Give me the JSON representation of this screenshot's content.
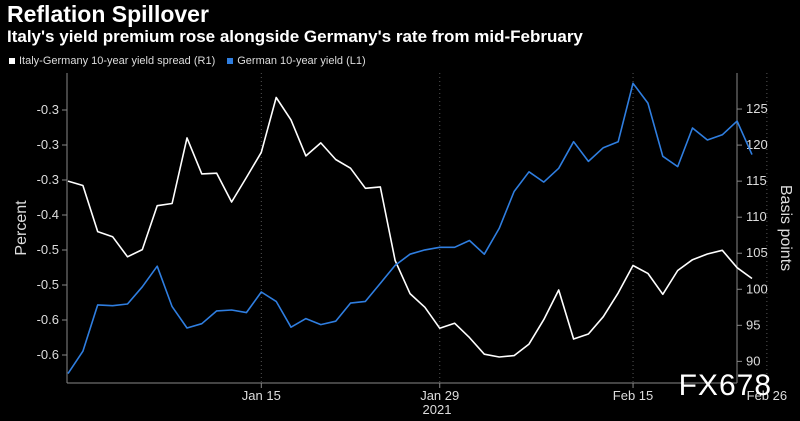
{
  "header": {
    "title": "Reflation Spillover",
    "subtitle": "Italy's yield premium rose alongside Germany's rate from mid-February"
  },
  "watermark": "FX678",
  "chart_data": {
    "type": "line",
    "title": "Reflation Spillover",
    "subtitle": "Italy's yield premium rose alongside Germany's rate from mid-February",
    "xlabel": "2021",
    "x_ticks": [
      "Jan 15",
      "Jan 29",
      "Feb 15",
      "Feb 26"
    ],
    "x_tick_index": [
      13,
      25,
      38,
      47
    ],
    "y_left": {
      "label": "Percent",
      "ticks": [
        "-0.3",
        "-0.3",
        "-0.3",
        "-0.4",
        "-0.5",
        "-0.5",
        "-0.6",
        "-0.6"
      ],
      "range": [
        -0.616,
        -0.255
      ]
    },
    "y_right": {
      "label": "Basis points",
      "ticks": [
        "125",
        "120",
        "115",
        "110",
        "105",
        "100",
        "95",
        "90"
      ],
      "range": [
        87,
        130
      ]
    },
    "series": [
      {
        "name": "Italy-Germany 10-year yield spread (R1)",
        "axis": "right",
        "color": "#ffffff",
        "values": [
          115,
          114.4,
          108,
          107.3,
          104.5,
          105.5,
          111.6,
          111.9,
          121,
          116,
          116.1,
          112.1,
          115.5,
          119,
          126.6,
          123.5,
          118.5,
          120.3,
          118,
          116.8,
          114,
          114.2,
          104,
          99.4,
          97.5,
          94.6,
          95.3,
          93.3,
          91,
          90.6,
          90.8,
          92.4,
          95.8,
          99.9,
          93.1,
          93.8,
          96.2,
          99.5,
          103.3,
          102.2,
          99.3,
          102.6,
          104.1,
          104.9,
          105.4,
          103,
          101.5
        ]
      },
      {
        "name": "German 10-year yield (L1)",
        "axis": "left",
        "color": "#2f7ee0",
        "values": [
          -0.605,
          -0.579,
          -0.525,
          -0.526,
          -0.524,
          -0.504,
          -0.48,
          -0.527,
          -0.552,
          -0.547,
          -0.532,
          -0.531,
          -0.534,
          -0.51,
          -0.521,
          -0.551,
          -0.541,
          -0.548,
          -0.544,
          -0.523,
          -0.521,
          -0.5,
          -0.479,
          -0.466,
          -0.461,
          -0.458,
          -0.458,
          -0.45,
          -0.466,
          -0.436,
          -0.393,
          -0.37,
          -0.382,
          -0.366,
          -0.335,
          -0.358,
          -0.342,
          -0.335,
          -0.267,
          -0.29,
          -0.352,
          -0.364,
          -0.319,
          -0.333,
          -0.327,
          -0.311,
          -0.35
        ]
      }
    ],
    "legend_position": "top-left",
    "grid": "vertical dotted"
  }
}
